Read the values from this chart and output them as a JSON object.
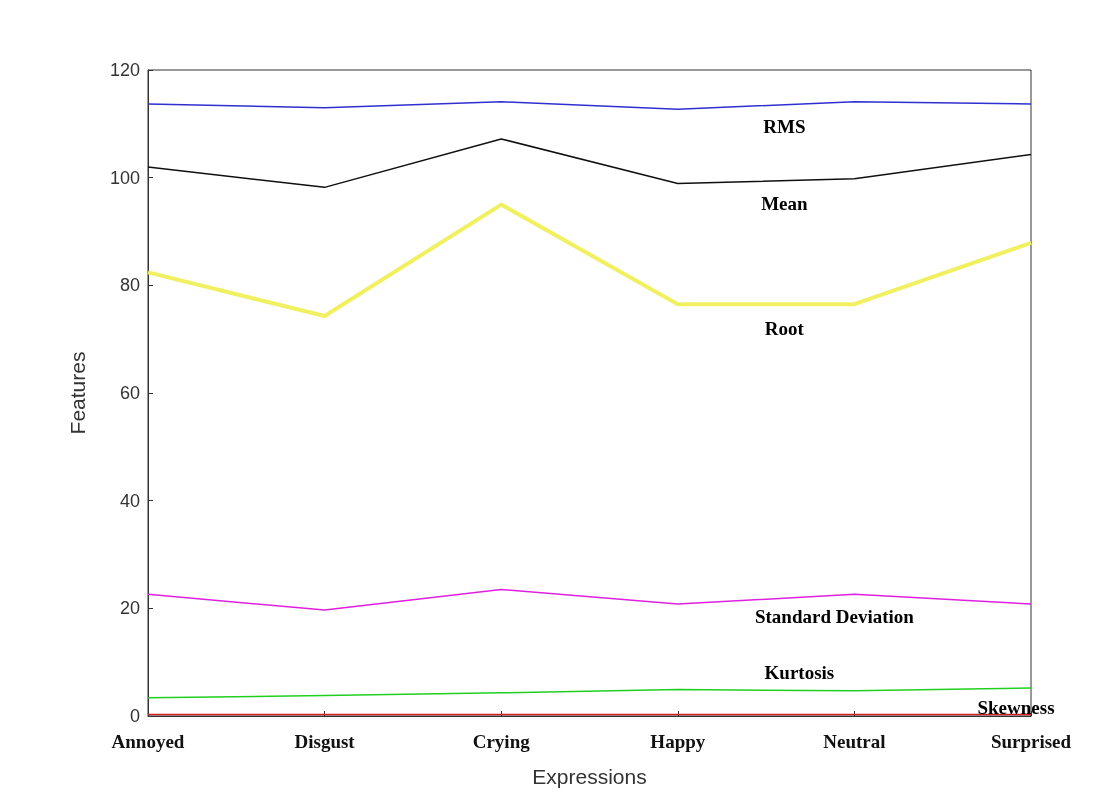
{
  "chart_data": {
    "type": "line",
    "xlabel": "Expressions",
    "ylabel": "Features",
    "categories": [
      "Annoyed",
      "Disgust",
      "Crying",
      "Happy",
      "Neutral",
      "Surprised"
    ],
    "series": [
      {
        "name": "RMS",
        "color": "#3030d0",
        "values": [
          113.7,
          113,
          114.1,
          112.7,
          114.1,
          113.7
        ]
      },
      {
        "name": "Mean",
        "color": "#101010",
        "values": [
          102,
          98.2,
          107.2,
          98.9,
          99.8,
          104.3
        ]
      },
      {
        "name": "Root",
        "color": "#f0f060",
        "values": [
          82.4,
          74.3,
          95,
          76.5,
          76.5,
          87.9
        ]
      },
      {
        "name": "Standard Deviation",
        "color": "#e020e0",
        "values": [
          22.6,
          19.7,
          23.5,
          20.8,
          22.6,
          20.8
        ]
      },
      {
        "name": "Kurtosis",
        "color": "#20d020",
        "values": [
          3.4,
          3.8,
          4.3,
          4.9,
          4.7,
          5.2
        ]
      },
      {
        "name": "Skewness",
        "color": "#d02020",
        "values": [
          0.3,
          0.3,
          0.3,
          0.3,
          0.3,
          0.3
        ]
      }
    ],
    "ylim": [
      0,
      120
    ],
    "yticks": [
      0,
      20,
      40,
      60,
      80,
      100,
      120
    ],
    "grid": false,
    "marker": "none",
    "line_style": "solid"
  }
}
